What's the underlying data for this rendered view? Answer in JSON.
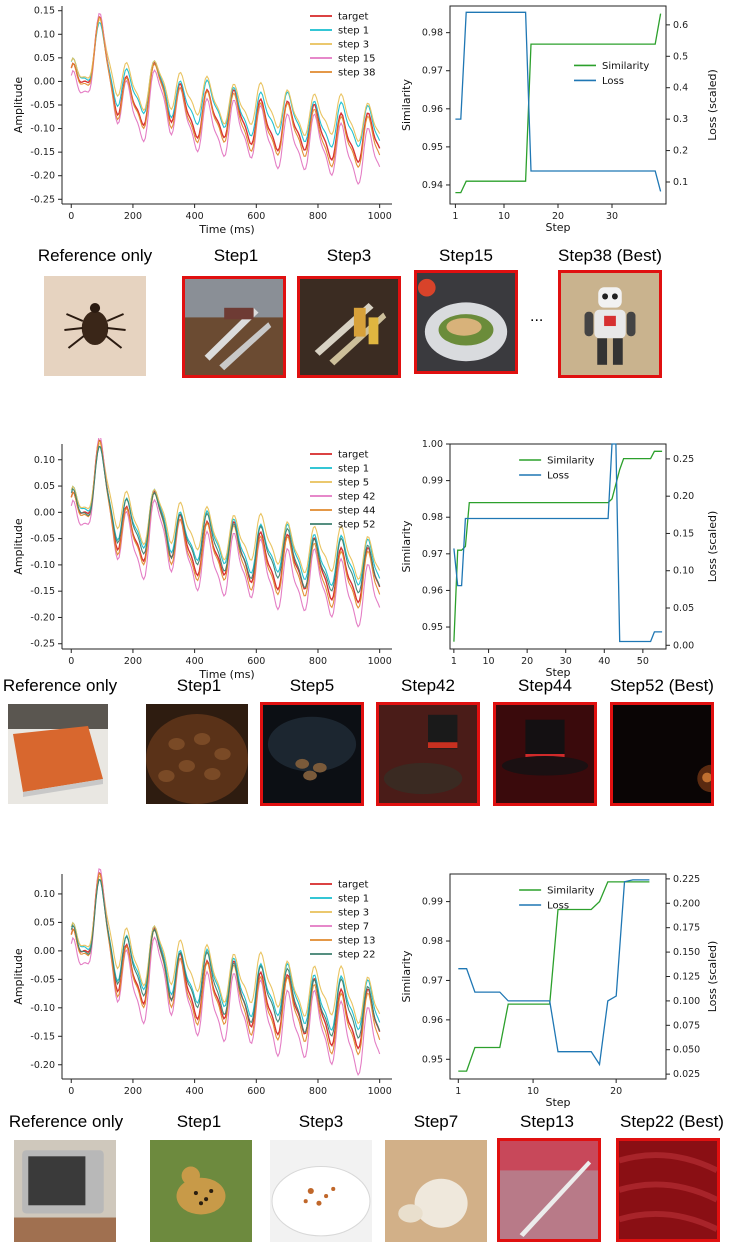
{
  "colors": {
    "target": "#d62728",
    "step_a": "#17becf",
    "step_b": "#e8c15a",
    "step_c": "#e377c2",
    "step_d": "#e08a2e",
    "step_e": "#3d7f6e",
    "similarity": "#2ca02c",
    "loss": "#1f77b4",
    "highlight_border": "#e01010"
  },
  "chart_data": [
    {
      "id": "wave1",
      "type": "line",
      "xlabel": "Time (ms)",
      "ylabel": "Amplitude",
      "xlim": [
        -30,
        1040
      ],
      "ylim": [
        -0.26,
        0.16
      ],
      "xticks": [
        0,
        200,
        400,
        600,
        800,
        1000
      ],
      "yticks": [
        -0.25,
        -0.2,
        -0.15,
        -0.1,
        -0.05,
        0.0,
        0.05,
        0.1,
        0.15
      ],
      "yfmt": 2,
      "grid": false,
      "legend": "top-right",
      "series": [
        {
          "name": "target",
          "color": "#d62728",
          "amp": 1.0,
          "off": 0.0
        },
        {
          "name": "step 1",
          "color": "#17becf",
          "amp": 0.9,
          "off": 0.01
        },
        {
          "name": "step 3",
          "color": "#e8c15a",
          "amp": 0.85,
          "off": 0.02
        },
        {
          "name": "step 15",
          "color": "#e377c2",
          "amp": 1.15,
          "off": -0.015
        },
        {
          "name": "step 38",
          "color": "#e08a2e",
          "amp": 1.05,
          "off": -0.005
        }
      ]
    },
    {
      "id": "sim1",
      "type": "line",
      "xlabel": "Step",
      "ylabel": "Similarity",
      "y2label": "Loss (scaled)",
      "xlim": [
        0,
        40
      ],
      "ylim": [
        0.935,
        0.987
      ],
      "y2lim": [
        0.03,
        0.66
      ],
      "xticks": [
        1,
        10,
        20,
        30
      ],
      "yticks": [
        0.94,
        0.95,
        0.96,
        0.97,
        0.98
      ],
      "y2ticks": [
        0.1,
        0.2,
        0.3,
        0.4,
        0.5,
        0.6
      ],
      "yfmt": 2,
      "y2fmt": 1,
      "legend": "center-right",
      "series": [
        {
          "name": "Similarity",
          "axis": "y",
          "color": "#2ca02c",
          "x": [
            1,
            2,
            3,
            13,
            14,
            15,
            38,
            39
          ],
          "y": [
            0.938,
            0.938,
            0.941,
            0.941,
            0.941,
            0.977,
            0.977,
            0.985
          ]
        },
        {
          "name": "Loss",
          "axis": "y2",
          "color": "#1f77b4",
          "x": [
            1,
            2,
            3,
            14,
            15,
            38,
            39
          ],
          "y": [
            0.3,
            0.3,
            0.64,
            0.64,
            0.135,
            0.135,
            0.07
          ]
        }
      ]
    },
    {
      "id": "wave2",
      "type": "line",
      "xlabel": "Time (ms)",
      "ylabel": "Amplitude",
      "xlim": [
        -30,
        1040
      ],
      "ylim": [
        -0.26,
        0.13
      ],
      "xticks": [
        0,
        200,
        400,
        600,
        800,
        1000
      ],
      "yticks": [
        -0.25,
        -0.2,
        -0.15,
        -0.1,
        -0.05,
        0.0,
        0.05,
        0.1
      ],
      "yfmt": 2,
      "grid": false,
      "legend": "top-right",
      "series": [
        {
          "name": "target",
          "color": "#d62728",
          "amp": 1.0,
          "off": 0.0
        },
        {
          "name": "step 1",
          "color": "#17becf",
          "amp": 0.9,
          "off": 0.01
        },
        {
          "name": "step 5",
          "color": "#e8c15a",
          "amp": 0.85,
          "off": 0.02
        },
        {
          "name": "step 42",
          "color": "#e377c2",
          "amp": 1.15,
          "off": -0.015
        },
        {
          "name": "step 44",
          "color": "#e08a2e",
          "amp": 1.05,
          "off": -0.005
        },
        {
          "name": "step 52",
          "color": "#3d7f6e",
          "amp": 0.95,
          "off": 0.005
        }
      ]
    },
    {
      "id": "sim2",
      "type": "line",
      "xlabel": "Step",
      "ylabel": "Similarity",
      "y2label": "Loss (scaled)",
      "xlim": [
        0,
        56
      ],
      "ylim": [
        0.944,
        1.0
      ],
      "y2lim": [
        -0.005,
        0.27
      ],
      "xticks": [
        1,
        10,
        20,
        30,
        40,
        50
      ],
      "yticks": [
        0.95,
        0.96,
        0.97,
        0.98,
        0.99,
        1.0
      ],
      "y2ticks": [
        0.0,
        0.05,
        0.1,
        0.15,
        0.2,
        0.25
      ],
      "yfmt": 2,
      "y2fmt": 2,
      "legend": "top-center",
      "series": [
        {
          "name": "Similarity",
          "axis": "y",
          "color": "#2ca02c",
          "x": [
            1,
            2,
            3,
            4,
            5,
            41,
            42,
            44,
            45,
            52,
            53,
            55
          ],
          "y": [
            0.946,
            0.971,
            0.971,
            0.972,
            0.984,
            0.984,
            0.985,
            0.993,
            0.996,
            0.996,
            0.998,
            0.998
          ]
        },
        {
          "name": "Loss",
          "axis": "y2",
          "color": "#1f77b4",
          "x": [
            1,
            2,
            3,
            4,
            5,
            41,
            42,
            43,
            44,
            45,
            52,
            53,
            55
          ],
          "y": [
            0.13,
            0.08,
            0.08,
            0.17,
            0.17,
            0.17,
            0.27,
            0.27,
            0.005,
            0.005,
            0.005,
            0.018,
            0.018
          ]
        }
      ]
    },
    {
      "id": "wave3",
      "type": "line",
      "xlabel": "",
      "ylabel": "Amplitude",
      "xlim": [
        -30,
        1040
      ],
      "ylim": [
        -0.225,
        0.135
      ],
      "xticks": [
        0,
        200,
        400,
        600,
        800,
        1000
      ],
      "yticks": [
        -0.2,
        -0.15,
        -0.1,
        -0.05,
        0.0,
        0.05,
        0.1
      ],
      "yfmt": 2,
      "grid": false,
      "legend": "top-right",
      "series": [
        {
          "name": "target",
          "color": "#d62728",
          "amp": 1.0,
          "off": 0.0
        },
        {
          "name": "step 1",
          "color": "#17becf",
          "amp": 0.9,
          "off": 0.01
        },
        {
          "name": "step 3",
          "color": "#e8c15a",
          "amp": 0.85,
          "off": 0.02
        },
        {
          "name": "step 7",
          "color": "#e377c2",
          "amp": 1.15,
          "off": -0.015
        },
        {
          "name": "step 13",
          "color": "#e08a2e",
          "amp": 1.05,
          "off": -0.005
        },
        {
          "name": "step 22",
          "color": "#3d7f6e",
          "amp": 0.95,
          "off": 0.005
        }
      ]
    },
    {
      "id": "sim3",
      "type": "line",
      "xlabel": "Step",
      "ylabel": "Similarity",
      "y2label": "Loss (scaled)",
      "xlim": [
        0,
        26
      ],
      "ylim": [
        0.945,
        0.997
      ],
      "y2lim": [
        0.02,
        0.23
      ],
      "xticks": [
        1,
        10,
        20
      ],
      "yticks": [
        0.95,
        0.96,
        0.97,
        0.98,
        0.99
      ],
      "y2ticks": [
        0.025,
        0.05,
        0.075,
        0.1,
        0.125,
        0.15,
        0.175,
        0.2,
        0.225
      ],
      "yfmt": 2,
      "y2fmt": 3,
      "legend": "top-center",
      "series": [
        {
          "name": "Similarity",
          "axis": "y",
          "color": "#2ca02c",
          "x": [
            1,
            2,
            3,
            6,
            7,
            12,
            13,
            17,
            18,
            19,
            22,
            24
          ],
          "y": [
            0.947,
            0.947,
            0.953,
            0.953,
            0.964,
            0.964,
            0.988,
            0.988,
            0.99,
            0.995,
            0.995,
            0.995
          ]
        },
        {
          "name": "Loss",
          "axis": "y2",
          "color": "#1f77b4",
          "x": [
            1,
            2,
            3,
            6,
            7,
            12,
            13,
            17,
            18,
            19,
            20,
            21,
            22,
            24
          ],
          "y": [
            0.133,
            0.133,
            0.109,
            0.109,
            0.1,
            0.1,
            0.048,
            0.048,
            0.035,
            0.1,
            0.105,
            0.222,
            0.224,
            0.224
          ]
        }
      ]
    }
  ],
  "rows": [
    {
      "id": "row1",
      "ref_label": "Reference only",
      "labels": [
        "Step1",
        "Step3",
        "Step15",
        "Step38 (Best)"
      ],
      "ellipsis": "...",
      "thumbs": [
        "tick",
        "knives",
        "knives2",
        "plate",
        "robot"
      ]
    },
    {
      "id": "row2",
      "ref_label": "Reference only",
      "labels": [
        "Step1",
        "Step5",
        "Step42",
        "Step44",
        "Step52 (Best)"
      ],
      "thumbs": [
        "book",
        "coffee",
        "jar",
        "hat1",
        "hat2",
        "dark"
      ]
    },
    {
      "id": "row3",
      "ref_label": "Reference only",
      "labels": [
        "Step1",
        "Step3",
        "Step7",
        "Step13",
        "Step22 (Best)"
      ],
      "thumbs": [
        "tv",
        "cheetah",
        "crumbs",
        "garlic",
        "blade",
        "fabric"
      ]
    }
  ]
}
